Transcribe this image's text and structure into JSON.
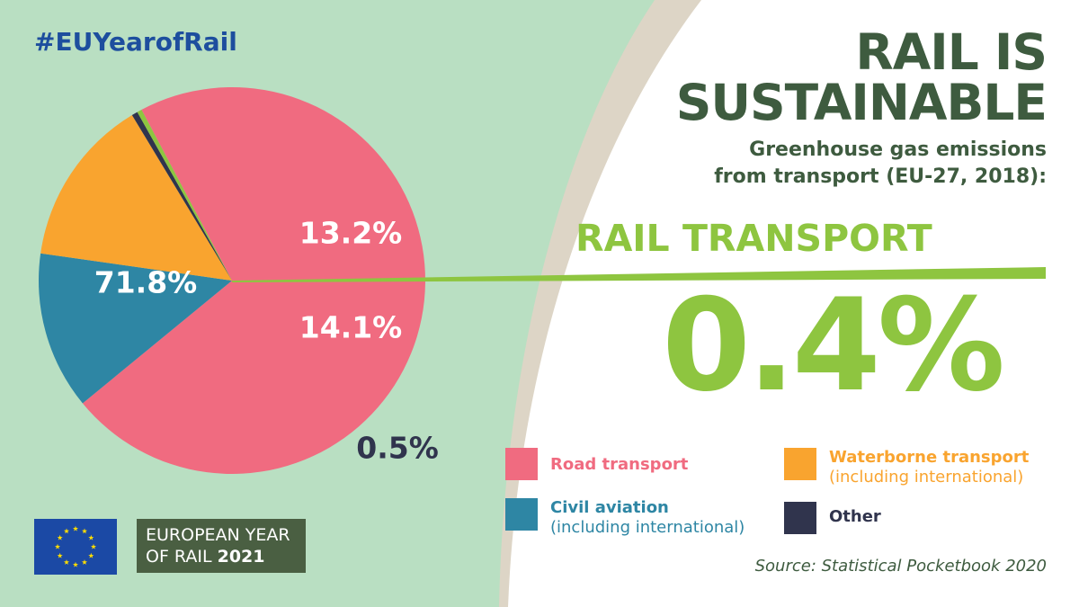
{
  "hashtag": "#EUYearofRail",
  "title_lines": [
    "RAIL IS",
    "SUSTAINABLE"
  ],
  "subtitle_lines": [
    "Greenhouse gas emissions",
    "from transport (EU-27, 2018):"
  ],
  "highlight": {
    "label": "RAIL TRANSPORT",
    "value": "0.4%",
    "color": "#8ec540"
  },
  "source": "Source: Statistical Pocketbook 2020",
  "badge": {
    "line1": "EUROPEAN YEAR",
    "line2": "OF RAIL",
    "year": "2021"
  },
  "colors": {
    "background_green": "#b9dfc2",
    "panel_white": "#ffffff",
    "title": "#3e5b3f",
    "hashtag": "#1d4e9e",
    "eu_blue": "#1b49a5",
    "eu_star": "#ffdd00"
  },
  "chart_data": {
    "type": "pie",
    "slices": [
      {
        "label": "Road transport",
        "value": 71.8,
        "display": "71.8%",
        "color": "#f06b80"
      },
      {
        "label": "Civil aviation",
        "note": "(including international)",
        "value": 13.2,
        "display": "13.2%",
        "color": "#2e86a4"
      },
      {
        "label": "Waterborne transport",
        "note": "(including international)",
        "value": 14.1,
        "display": "14.1%",
        "color": "#f9a42f"
      },
      {
        "label": "Other",
        "value": 0.5,
        "display": "0.5%",
        "color": "#30344d"
      },
      {
        "label": "Rail transport",
        "value": 0.4,
        "display": "0.4%",
        "color": "#8ec540"
      }
    ],
    "legend_placement": "bottom-right"
  }
}
